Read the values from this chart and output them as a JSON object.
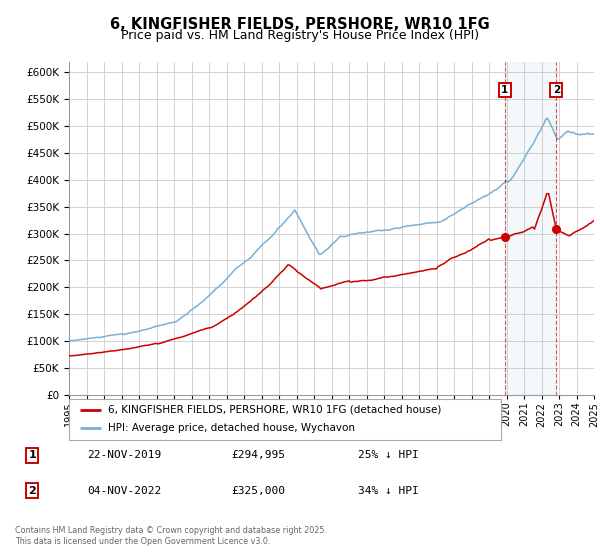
{
  "title": "6, KINGFISHER FIELDS, PERSHORE, WR10 1FG",
  "subtitle": "Price paid vs. HM Land Registry's House Price Index (HPI)",
  "red_label": "6, KINGFISHER FIELDS, PERSHORE, WR10 1FG (detached house)",
  "blue_label": "HPI: Average price, detached house, Wychavon",
  "footnote": "Contains HM Land Registry data © Crown copyright and database right 2025.\nThis data is licensed under the Open Government Licence v3.0.",
  "marker1_date": "22-NOV-2019",
  "marker1_price": "£294,995",
  "marker1_hpi": "25% ↓ HPI",
  "marker1_year": 2019.9,
  "marker1_val": 295000,
  "marker2_date": "04-NOV-2022",
  "marker2_price": "£325,000",
  "marker2_hpi": "34% ↓ HPI",
  "marker2_year": 2022.85,
  "marker2_val": 325000,
  "ylim": [
    0,
    620000
  ],
  "xlim_start": 1995,
  "xlim_end": 2025,
  "red_color": "#cc0000",
  "blue_color": "#7ab0d4",
  "background_color": "#ffffff",
  "grid_color": "#cccccc",
  "title_fontsize": 10.5,
  "subtitle_fontsize": 9
}
